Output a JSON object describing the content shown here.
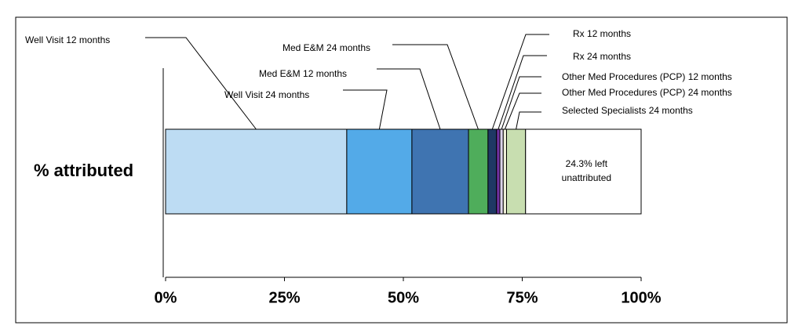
{
  "chart_data": {
    "type": "stacked-bar",
    "categories": [
      "% attributed"
    ],
    "series": [
      {
        "name": "Well Visit 12 months",
        "color": "#bddcf3",
        "values": [
          38.1
        ]
      },
      {
        "name": "Well Visit 24 months",
        "color": "#53aae8",
        "values": [
          13.7
        ]
      },
      {
        "name": "Med E&M 12 months",
        "color": "#3f74b1",
        "values": [
          11.9
        ]
      },
      {
        "name": "Med E&M 24 months",
        "color": "#4fad5b",
        "values": [
          4.1
        ]
      },
      {
        "name": "Rx 12 months",
        "color": "#1f3864",
        "values": [
          1.8
        ]
      },
      {
        "name": "Rx 24 months",
        "color": "#7030a0",
        "values": [
          0.7
        ]
      },
      {
        "name": "Other Med Procedures (PCP) 12 months",
        "color": "#dcd3ea",
        "values": [
          0.7
        ]
      },
      {
        "name": "Other Med Procedures (PCP) 24 months",
        "color": "#eeeed8",
        "values": [
          0.7
        ]
      },
      {
        "name": "Selected Specialists 24 months",
        "color": "#c8deb0",
        "values": [
          4.0
        ]
      }
    ],
    "remainder": {
      "value": 24.3,
      "label": "24.3% left unattributed"
    },
    "xlim": [
      0,
      100
    ],
    "xticks": [
      {
        "value": 0,
        "label": "0%"
      },
      {
        "value": 25,
        "label": "25%"
      },
      {
        "value": 50,
        "label": "50%"
      },
      {
        "value": 75,
        "label": "75%"
      },
      {
        "value": 100,
        "label": "100%"
      }
    ]
  }
}
